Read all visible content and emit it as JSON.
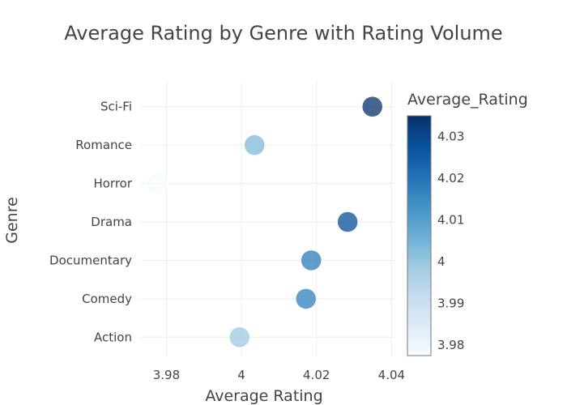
{
  "chart_data": {
    "type": "scatter",
    "title": "Average Rating by Genre with Rating Volume",
    "xlabel": "Average Rating",
    "ylabel": "Genre",
    "xlim": [
      3.973,
      4.041
    ],
    "x_ticks": [
      3.98,
      4,
      4.02,
      4.04
    ],
    "x_tick_labels": [
      "3.98",
      "4",
      "4.02",
      "4.04"
    ],
    "categories": [
      "Action",
      "Comedy",
      "Documentary",
      "Drama",
      "Horror",
      "Romance",
      "Sci-Fi"
    ],
    "points": [
      {
        "genre": "Action",
        "x": 3.9995
      },
      {
        "genre": "Comedy",
        "x": 4.0172
      },
      {
        "genre": "Documentary",
        "x": 4.0186
      },
      {
        "genre": "Drama",
        "x": 4.0283
      },
      {
        "genre": "Horror",
        "x": 3.9775
      },
      {
        "genre": "Romance",
        "x": 4.0035
      },
      {
        "genre": "Sci-Fi",
        "x": 4.0349
      }
    ],
    "grid": true,
    "colorbar": {
      "title": "Average_Rating",
      "range": [
        3.9775,
        4.0349
      ],
      "ticks": [
        3.98,
        3.99,
        4,
        4.01,
        4.02,
        4.03
      ],
      "tick_labels": [
        "3.98",
        "3.99",
        "4",
        "4.01",
        "4.02",
        "4.03"
      ],
      "colorscale": [
        "#f7fbff",
        "#deebf7",
        "#c6dbef",
        "#9ecae1",
        "#6baed6",
        "#4292c6",
        "#2171b5",
        "#08519c",
        "#08306b"
      ]
    }
  }
}
